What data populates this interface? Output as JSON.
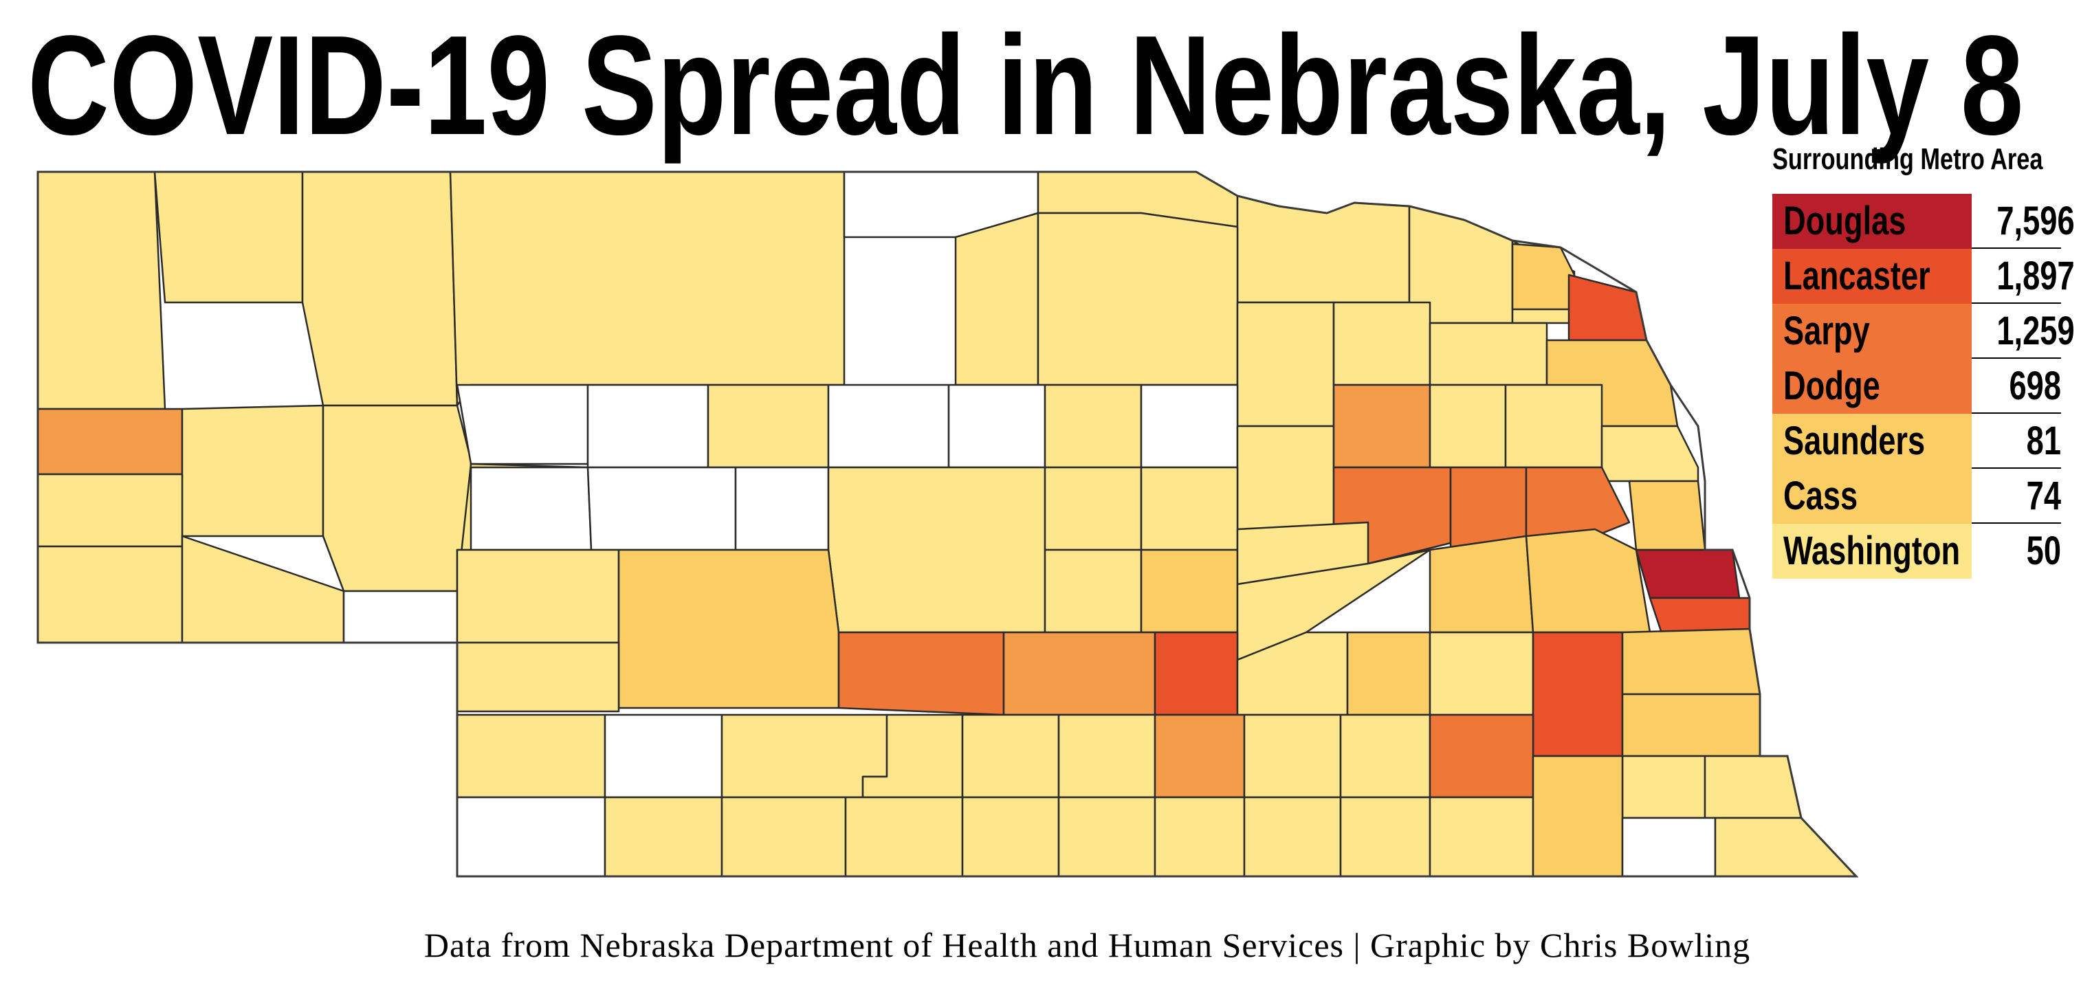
{
  "title": "COVID-19 Spread in Nebraska, July 8",
  "legend": {
    "title": "Surrounding Metro Area",
    "rows": [
      {
        "county": "Douglas",
        "cases": "7,596",
        "color": "#b81f2b"
      },
      {
        "county": "Lancaster",
        "cases": "1,897",
        "color": "#e8502a"
      },
      {
        "county": "Sarpy",
        "cases": "1,259",
        "color": "#ee7437"
      },
      {
        "county": "Dodge",
        "cases": "698",
        "color": "#ee7437"
      },
      {
        "county": "Saunders",
        "cases": "81",
        "color": "#fbcd65"
      },
      {
        "county": "Cass",
        "cases": "74",
        "color": "#fbcd65"
      },
      {
        "county": "Washington",
        "cases": "50",
        "color": "#fde58a"
      }
    ]
  },
  "credit": "Data from Nebraska Department of Health and Human Services | Graphic by Chris Bowling",
  "map": {
    "fill_classes": {
      "none": "#ffffff",
      "low": "#fde68b",
      "low_mid": "#fbcd65",
      "mid": "#f59c4b",
      "high": "#ef7737",
      "higher": "#e9522b",
      "highest": "#b81f2b"
    }
  }
}
